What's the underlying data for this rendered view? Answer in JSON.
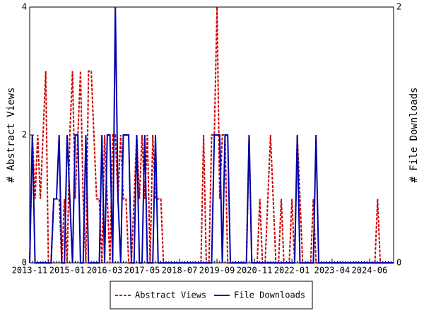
{
  "chart_data": {
    "type": "line",
    "ylabel": "# Abstract Views",
    "y2label": "# File Downloads",
    "categories": [
      "2013-11",
      "2013-12",
      "2014-01",
      "2014-02",
      "2014-03",
      "2014-04",
      "2014-05",
      "2014-06",
      "2014-07",
      "2014-08",
      "2014-09",
      "2014-10",
      "2014-11",
      "2014-12",
      "2015-01",
      "2015-02",
      "2015-03",
      "2015-04",
      "2015-05",
      "2015-06",
      "2015-07",
      "2015-08",
      "2015-09",
      "2015-10",
      "2015-11",
      "2015-12",
      "2016-01",
      "2016-02",
      "2016-03",
      "2016-04",
      "2016-05",
      "2016-06",
      "2016-07",
      "2016-08",
      "2016-09",
      "2016-10",
      "2016-11",
      "2016-12",
      "2017-01",
      "2017-02",
      "2017-03",
      "2017-04",
      "2017-05",
      "2017-06",
      "2017-07",
      "2017-08",
      "2017-09",
      "2017-10",
      "2017-11",
      "2017-12",
      "2018-01",
      "2018-02",
      "2018-03",
      "2018-04",
      "2018-05",
      "2018-06",
      "2018-07",
      "2018-08",
      "2018-09",
      "2018-10",
      "2018-11",
      "2018-12",
      "2019-01",
      "2019-02",
      "2019-03",
      "2019-04",
      "2019-05",
      "2019-06",
      "2019-07",
      "2019-08",
      "2019-09",
      "2019-10",
      "2019-11",
      "2019-12",
      "2020-01",
      "2020-02",
      "2020-03",
      "2020-04",
      "2020-05",
      "2020-06",
      "2020-07",
      "2020-08",
      "2020-09",
      "2020-10",
      "2020-11",
      "2020-12",
      "2021-01",
      "2021-02",
      "2021-03",
      "2021-04",
      "2021-05",
      "2021-06",
      "2021-07",
      "2021-08",
      "2021-09",
      "2021-10",
      "2021-11",
      "2021-12",
      "2022-01",
      "2022-02",
      "2022-03",
      "2022-04",
      "2022-05",
      "2022-06",
      "2022-07",
      "2022-08",
      "2022-09",
      "2022-10",
      "2022-11",
      "2022-12",
      "2023-01",
      "2023-02",
      "2023-03",
      "2023-04",
      "2023-05",
      "2023-06",
      "2023-07",
      "2023-08",
      "2023-09",
      "2023-10",
      "2023-11",
      "2023-12",
      "2024-01",
      "2024-02",
      "2024-03",
      "2024-04",
      "2024-05",
      "2024-06",
      "2024-07",
      "2024-08",
      "2024-09",
      "2024-10",
      "2024-11",
      "2024-12",
      "2025-01",
      "2025-02",
      "2025-03"
    ],
    "xticks": [
      "2013-11",
      "2015-01",
      "2016-03",
      "2017-05",
      "2018-07",
      "2019-09",
      "2020-11",
      "2022-01",
      "2023-04",
      "2024-06"
    ],
    "ylim": [
      0,
      4
    ],
    "yticks": [
      0,
      2,
      4
    ],
    "y2lim": [
      0,
      2
    ],
    "y2ticks": [
      0,
      2
    ],
    "legend": "bottom",
    "series": [
      {
        "name": "Abstract Views",
        "color": "#cc0000",
        "dash": true,
        "values": [
          0,
          2,
          1,
          2,
          1,
          2,
          3,
          0,
          0,
          1,
          1,
          1,
          0,
          1,
          0,
          2,
          3,
          1,
          2,
          3,
          1,
          0,
          3,
          3,
          2,
          1,
          1,
          0,
          2,
          1,
          0,
          2,
          2,
          1,
          2,
          1,
          1,
          0,
          0,
          1,
          2,
          1,
          2,
          1,
          2,
          0,
          2,
          1,
          1,
          1,
          0,
          0,
          0,
          0,
          0,
          0,
          0,
          0,
          0,
          0,
          0,
          0,
          0,
          0,
          0,
          2,
          0,
          0,
          2,
          2,
          4,
          1,
          2,
          2,
          0,
          0,
          0,
          0,
          0,
          0,
          0,
          0,
          2,
          0,
          0,
          0,
          1,
          0,
          0,
          1,
          2,
          1,
          0,
          0,
          1,
          0,
          0,
          0,
          1,
          0,
          2,
          1,
          0,
          0,
          0,
          0,
          1,
          0,
          0,
          0,
          0,
          0,
          0,
          0,
          0,
          0,
          0,
          0,
          0,
          0,
          0,
          0,
          0,
          0,
          0,
          0,
          0,
          0,
          0,
          0,
          1,
          0,
          0,
          0,
          0,
          0,
          0
        ]
      },
      {
        "name": "File Downloads",
        "color": "#0000aa",
        "dash": false,
        "axis": "y2",
        "values": [
          0,
          1,
          0,
          0,
          0,
          0,
          0,
          0,
          0,
          0.5,
          0.5,
          1,
          0,
          0,
          1,
          0.5,
          0,
          1,
          1,
          0,
          0,
          1,
          0,
          0,
          0,
          0,
          0,
          1,
          0,
          1,
          1,
          0,
          2,
          0.5,
          0,
          1,
          1,
          1,
          0,
          0,
          1,
          0,
          0,
          1,
          0,
          0,
          0,
          1,
          0,
          0,
          0,
          0,
          0,
          0,
          0,
          0,
          0,
          0,
          0,
          0,
          0,
          0,
          0,
          0,
          0,
          0,
          0,
          0,
          0,
          1,
          1,
          1,
          0,
          1,
          1,
          0,
          0,
          0,
          0,
          0,
          0,
          0,
          1,
          0,
          0,
          0,
          0,
          0,
          0,
          0,
          0,
          0,
          0,
          0,
          0,
          0,
          0,
          0,
          0,
          0,
          1,
          0,
          0,
          0,
          0,
          0,
          0,
          1,
          0,
          0,
          0,
          0,
          0,
          0,
          0,
          0,
          0,
          0,
          0,
          0,
          0,
          0,
          0,
          0,
          0,
          0,
          0,
          0,
          0,
          0,
          0,
          0,
          0,
          0,
          0,
          0,
          0
        ]
      }
    ]
  }
}
